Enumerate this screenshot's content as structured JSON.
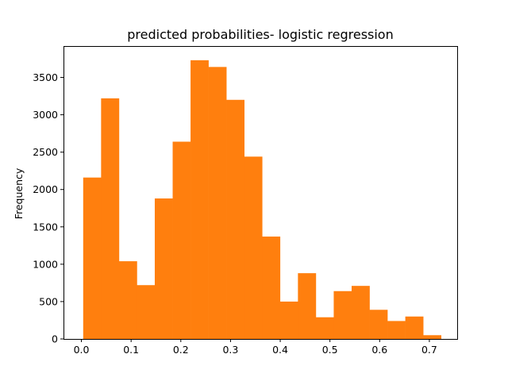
{
  "chart_data": {
    "type": "bar",
    "title": "predicted probabilities- logistic regression",
    "xlabel": "",
    "ylabel": "Frequency",
    "grid": false,
    "bar_color": "#ff7f0e",
    "xlim": [
      -0.036,
      0.756
    ],
    "ylim": [
      0,
      3920
    ],
    "xticks": [
      0.0,
      0.1,
      0.2,
      0.3,
      0.4,
      0.5,
      0.6,
      0.7
    ],
    "xtick_labels": [
      "0.0",
      "0.1",
      "0.2",
      "0.3",
      "0.4",
      "0.5",
      "0.6",
      "0.7"
    ],
    "yticks": [
      0,
      500,
      1000,
      1500,
      2000,
      2500,
      3000,
      3500
    ],
    "ytick_labels": [
      "0",
      "500",
      "1000",
      "1500",
      "2000",
      "2500",
      "3000",
      "3500"
    ],
    "bin_edges": [
      0.0036,
      0.0396,
      0.0756,
      0.1116,
      0.1476,
      0.1836,
      0.2196,
      0.2556,
      0.2916,
      0.3276,
      0.3636,
      0.3996,
      0.4356,
      0.4716,
      0.5076,
      0.5436,
      0.5796,
      0.6156,
      0.6516,
      0.6876,
      0.7236
    ],
    "values": [
      2160,
      3220,
      1040,
      720,
      1880,
      2640,
      3730,
      3640,
      3200,
      2440,
      1370,
      500,
      880,
      290,
      640,
      710,
      390,
      240,
      300,
      50
    ]
  }
}
